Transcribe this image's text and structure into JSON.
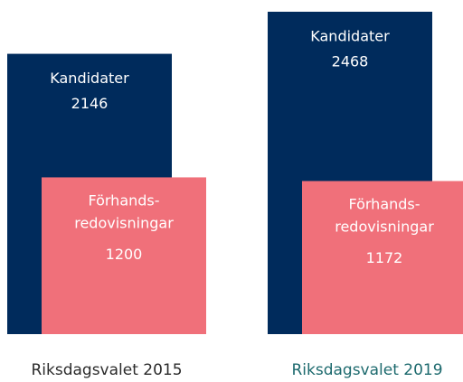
{
  "chart_data": {
    "type": "overlap-bar",
    "categories": [
      "Riksdagsvalet 2015",
      "Riksdagsvalet 2019"
    ],
    "category_colors": [
      "#2b2b2b",
      "#1d6a6e"
    ],
    "series": [
      {
        "name": "Kandidater",
        "color": "#002b5c",
        "values": [
          2146,
          2468
        ]
      },
      {
        "name": "Förhands-\nredovisningar",
        "color": "#f0707a",
        "values": [
          1200,
          1172
        ]
      }
    ]
  }
}
